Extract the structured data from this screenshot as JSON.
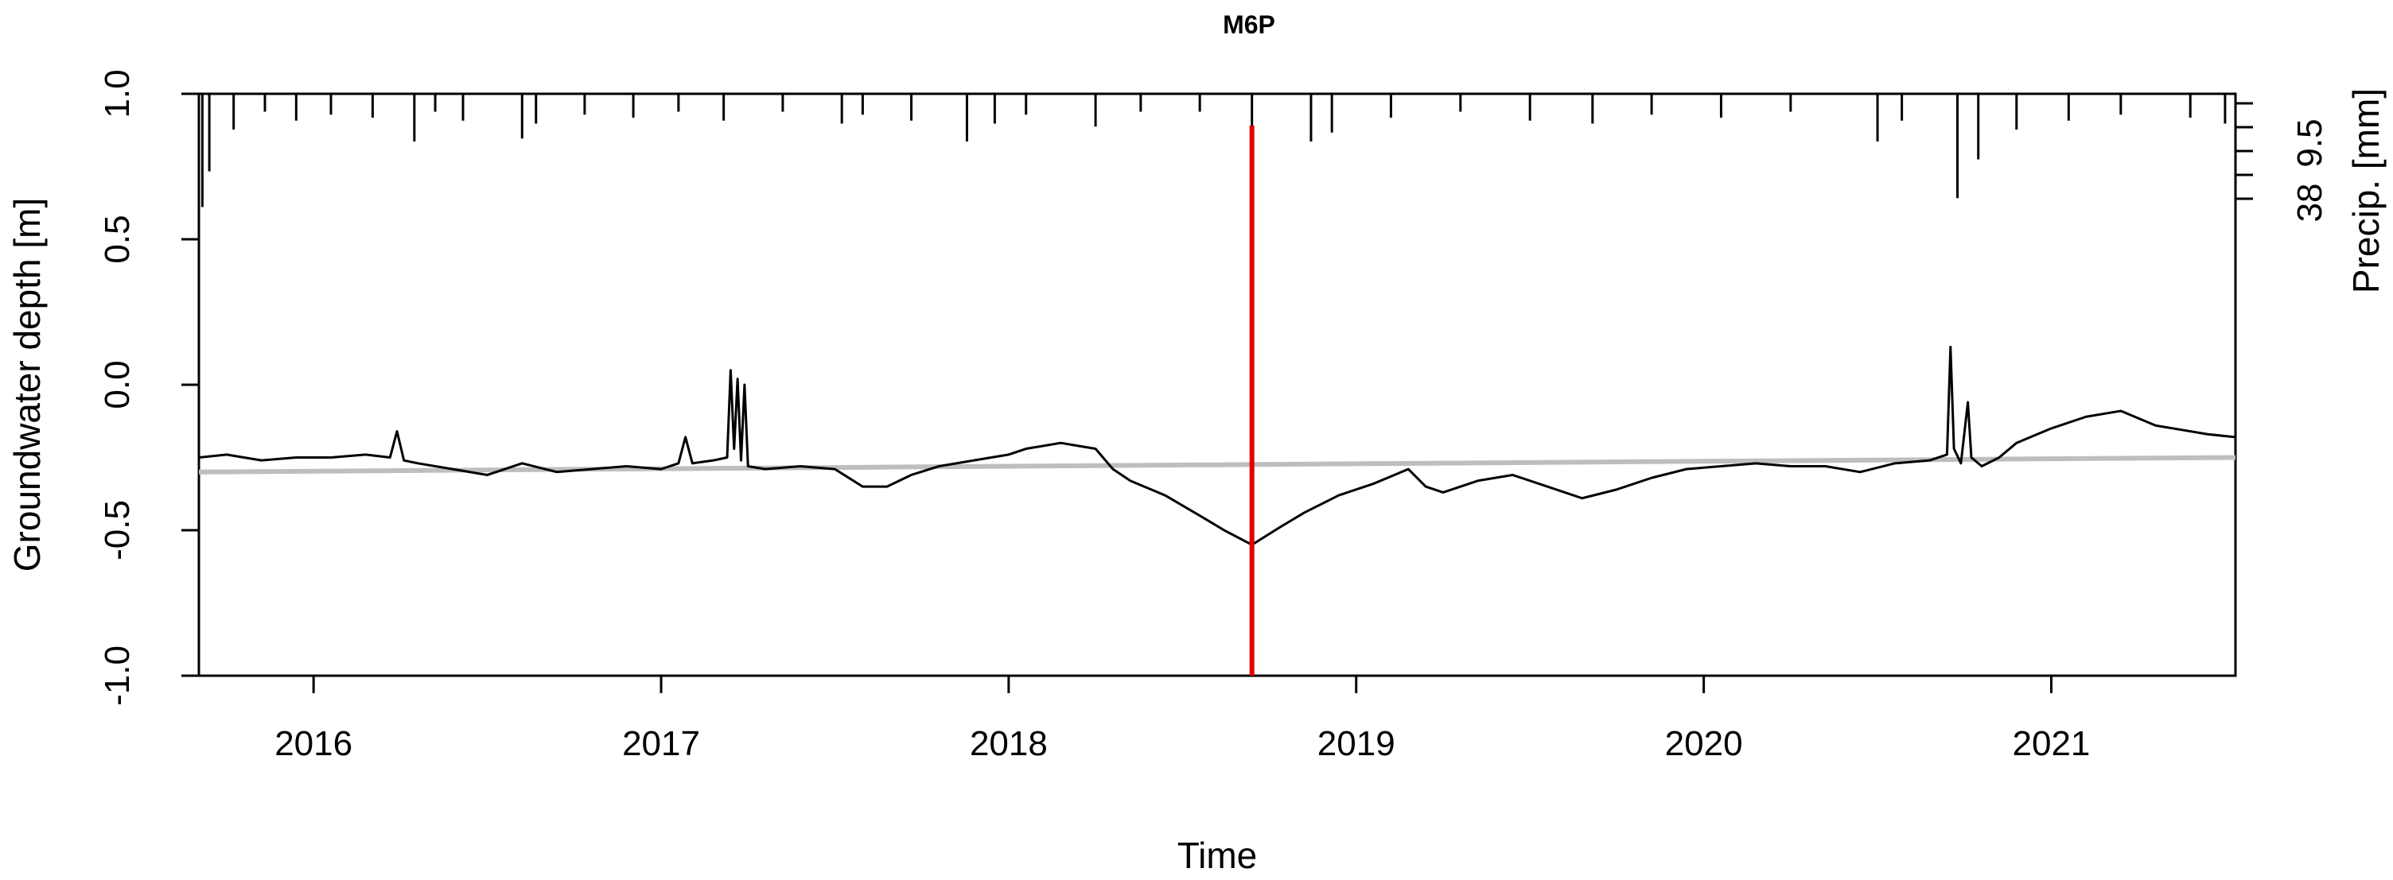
{
  "chart_data": {
    "type": "line",
    "title": "M6P",
    "xlabel": "Time",
    "ylabel": "Groundwater depth [m]",
    "y2label": "Precip. [mm]",
    "xlim": [
      2015.67,
      2021.53
    ],
    "ylim": [
      -1.0,
      1.0
    ],
    "x_ticks": [
      2016,
      2017,
      2018,
      2019,
      2020,
      2021
    ],
    "x_tick_labels": [
      "2016",
      "2017",
      "2018",
      "2019",
      "2020",
      "2021"
    ],
    "y_ticks": [
      -1.0,
      -0.5,
      0.0,
      0.5,
      1.0
    ],
    "y_tick_labels": [
      "-1.0",
      "-0.5",
      "0.0",
      "0.5",
      "1.0"
    ],
    "y2_tick_labels": [
      "9.5",
      "38"
    ],
    "grid": false,
    "legend": "none",
    "colors": {
      "groundwater": "#000000",
      "reference": "#bebebe",
      "marker": "#e00000",
      "precip": "#000000"
    },
    "marker_x": 2018.7,
    "series": [
      {
        "x": [
          2015.67,
          2015.75,
          2015.85,
          2015.95,
          2016.05,
          2016.15,
          2016.22,
          2016.24,
          2016.26,
          2016.3,
          2016.4,
          2016.5,
          2016.6,
          2016.7,
          2016.8,
          2016.9,
          2017.0,
          2017.05,
          2017.07,
          2017.09,
          2017.15,
          2017.19,
          2017.2,
          2017.21,
          2017.22,
          2017.23,
          2017.24,
          2017.25,
          2017.3,
          2017.4,
          2017.5,
          2017.58,
          2017.65,
          2017.72,
          2017.8,
          2017.9,
          2018.0,
          2018.05,
          2018.1,
          2018.15,
          2018.2,
          2018.25,
          2018.3,
          2018.35,
          2018.45,
          2018.55,
          2018.62,
          2018.7,
          2018.78,
          2018.85,
          2018.95,
          2019.05,
          2019.15,
          2019.2,
          2019.25,
          2019.35,
          2019.45,
          2019.55,
          2019.65,
          2019.75,
          2019.85,
          2019.95,
          2020.05,
          2020.15,
          2020.25,
          2020.35,
          2020.45,
          2020.55,
          2020.65,
          2020.7,
          2020.71,
          2020.72,
          2020.74,
          2020.76,
          2020.77,
          2020.8,
          2020.85,
          2020.9,
          2021.0,
          2021.1,
          2021.2,
          2021.3,
          2021.4,
          2021.45,
          2021.53
        ],
        "y": [
          -0.25,
          -0.24,
          -0.26,
          -0.25,
          -0.25,
          -0.24,
          -0.25,
          -0.16,
          -0.26,
          -0.27,
          -0.29,
          -0.31,
          -0.27,
          -0.3,
          -0.29,
          -0.28,
          -0.29,
          -0.27,
          -0.18,
          -0.27,
          -0.26,
          -0.25,
          0.05,
          -0.22,
          0.02,
          -0.26,
          0.0,
          -0.28,
          -0.29,
          -0.28,
          -0.29,
          -0.35,
          -0.35,
          -0.31,
          -0.28,
          -0.26,
          -0.24,
          -0.22,
          -0.21,
          -0.2,
          -0.21,
          -0.22,
          -0.29,
          -0.33,
          -0.38,
          -0.45,
          -0.5,
          -0.55,
          -0.49,
          -0.44,
          -0.38,
          -0.34,
          -0.29,
          -0.35,
          -0.37,
          -0.33,
          -0.31,
          -0.35,
          -0.39,
          -0.36,
          -0.32,
          -0.29,
          -0.28,
          -0.27,
          -0.28,
          -0.28,
          -0.3,
          -0.27,
          -0.26,
          -0.24,
          0.13,
          -0.22,
          -0.27,
          -0.06,
          -0.25,
          -0.28,
          -0.25,
          -0.2,
          -0.15,
          -0.11,
          -0.09,
          -0.14,
          -0.16,
          -0.17,
          -0.18
        ]
      },
      {
        "x": [
          2015.67,
          2021.53
        ],
        "y": [
          -0.3,
          -0.25
        ]
      }
    ],
    "precip": [
      {
        "x": 2015.68,
        "mm": 38
      },
      {
        "x": 2015.7,
        "mm": 26
      },
      {
        "x": 2015.77,
        "mm": 12
      },
      {
        "x": 2015.86,
        "mm": 6
      },
      {
        "x": 2015.95,
        "mm": 9
      },
      {
        "x": 2016.05,
        "mm": 7
      },
      {
        "x": 2016.17,
        "mm": 8
      },
      {
        "x": 2016.29,
        "mm": 16
      },
      {
        "x": 2016.35,
        "mm": 6
      },
      {
        "x": 2016.43,
        "mm": 9
      },
      {
        "x": 2016.6,
        "mm": 15
      },
      {
        "x": 2016.64,
        "mm": 10
      },
      {
        "x": 2016.78,
        "mm": 7
      },
      {
        "x": 2016.92,
        "mm": 8
      },
      {
        "x": 2017.05,
        "mm": 6
      },
      {
        "x": 2017.18,
        "mm": 9
      },
      {
        "x": 2017.35,
        "mm": 6
      },
      {
        "x": 2017.52,
        "mm": 10
      },
      {
        "x": 2017.58,
        "mm": 7
      },
      {
        "x": 2017.72,
        "mm": 9
      },
      {
        "x": 2017.88,
        "mm": 16
      },
      {
        "x": 2017.96,
        "mm": 10
      },
      {
        "x": 2018.05,
        "mm": 7
      },
      {
        "x": 2018.25,
        "mm": 11
      },
      {
        "x": 2018.38,
        "mm": 6
      },
      {
        "x": 2018.55,
        "mm": 6
      },
      {
        "x": 2018.7,
        "mm": 34
      },
      {
        "x": 2018.87,
        "mm": 16
      },
      {
        "x": 2018.93,
        "mm": 13
      },
      {
        "x": 2019.1,
        "mm": 8
      },
      {
        "x": 2019.3,
        "mm": 6
      },
      {
        "x": 2019.5,
        "mm": 9
      },
      {
        "x": 2019.68,
        "mm": 10
      },
      {
        "x": 2019.85,
        "mm": 7
      },
      {
        "x": 2020.05,
        "mm": 8
      },
      {
        "x": 2020.25,
        "mm": 6
      },
      {
        "x": 2020.5,
        "mm": 16
      },
      {
        "x": 2020.57,
        "mm": 9
      },
      {
        "x": 2020.73,
        "mm": 35
      },
      {
        "x": 2020.79,
        "mm": 22
      },
      {
        "x": 2020.9,
        "mm": 12
      },
      {
        "x": 2021.05,
        "mm": 9
      },
      {
        "x": 2021.2,
        "mm": 7
      },
      {
        "x": 2021.4,
        "mm": 8
      },
      {
        "x": 2021.5,
        "mm": 10
      }
    ]
  }
}
